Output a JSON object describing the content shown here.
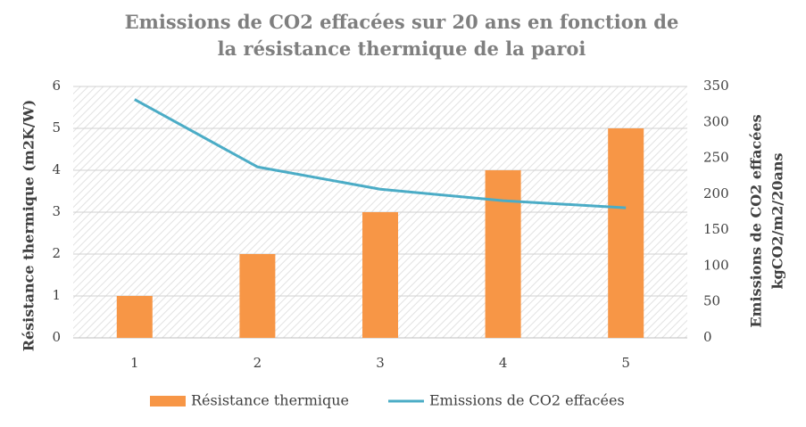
{
  "chart_data": {
    "type": "combo",
    "title": "Emissions de CO2 effacées sur 20 ans en fonction de la résistance thermique de la paroi",
    "categories": [
      "1",
      "2",
      "3",
      "4",
      "5"
    ],
    "series": [
      {
        "name": "Résistance thermique",
        "type": "bar",
        "color": "#f79646",
        "values": [
          1,
          2,
          3,
          4,
          5
        ]
      },
      {
        "name": "Emissions de CO2 effacées",
        "type": "line",
        "axis": "y2",
        "color": "#4bacc6",
        "values": [
          332,
          238,
          207,
          191,
          181
        ]
      }
    ],
    "ylabel": "Résistance thermique (m2K/W)",
    "y2label": [
      "Emissions de CO2 effacées",
      "kgCO2/m2/20ans"
    ],
    "ylim": [
      0,
      6
    ],
    "yticks": [
      0,
      1,
      2,
      3,
      4,
      5,
      6
    ],
    "y2lim": [
      0,
      350
    ],
    "y2ticks": [
      0,
      50,
      100,
      150,
      200,
      250,
      300,
      350
    ],
    "grid": true,
    "legend": "bottom"
  }
}
